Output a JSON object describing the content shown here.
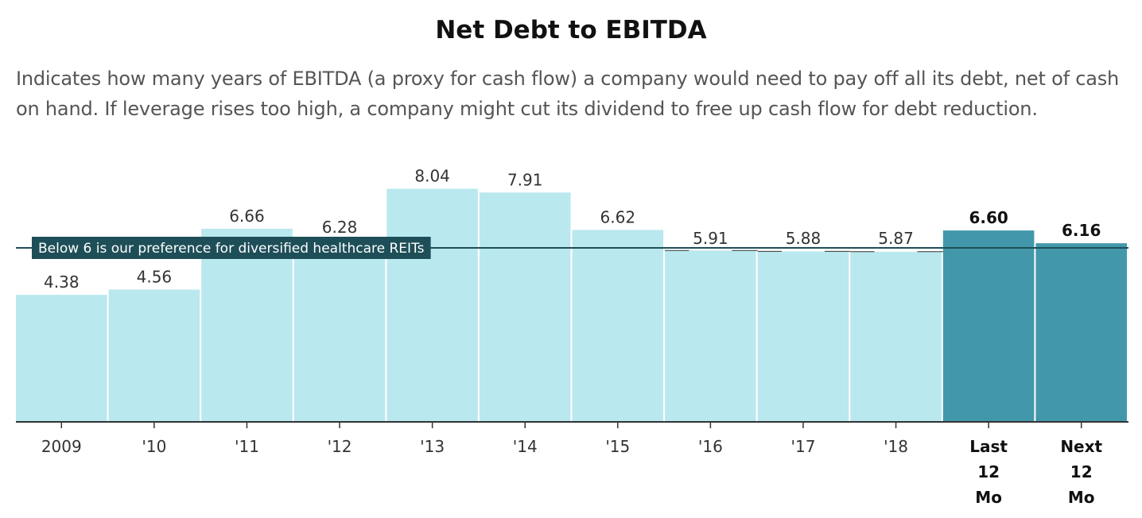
{
  "title": "Net Debt to EBITDA",
  "subtitle": "Indicates how many years of EBITDA (a proxy for cash flow) a company would need to pay off all its debt, net of cash on hand. If leverage rises too high, a company might cut its dividend to free up cash flow for debt reduction.",
  "colors": {
    "bar": "#bae8ef",
    "bar_highlight": "#4298aa",
    "reference_line": "#1e4f59",
    "axis": "#333333"
  },
  "chart_data": {
    "type": "bar",
    "categories": [
      "2009",
      "'10",
      "'11",
      "'12",
      "'13",
      "'14",
      "'15",
      "'16",
      "'17",
      "'18",
      "Last 12 Mo",
      "Next 12 Mo"
    ],
    "values": [
      4.38,
      4.56,
      6.66,
      6.28,
      8.04,
      7.91,
      6.62,
      5.91,
      5.88,
      5.87,
      6.6,
      6.16
    ],
    "value_labels": [
      "4.38",
      "4.56",
      "6.66",
      "6.28",
      "8.04",
      "7.91",
      "6.62",
      "5.91",
      "5.88",
      "5.87",
      "6.60",
      "6.16"
    ],
    "highlighted": [
      false,
      false,
      false,
      false,
      false,
      false,
      false,
      false,
      false,
      false,
      true,
      true
    ],
    "reference_line": {
      "value": 6,
      "label": "Below 6 is our preference for diversified healthcare REITs"
    },
    "ylim": [
      0,
      9
    ],
    "grid": false,
    "xlabel": "",
    "ylabel": ""
  }
}
